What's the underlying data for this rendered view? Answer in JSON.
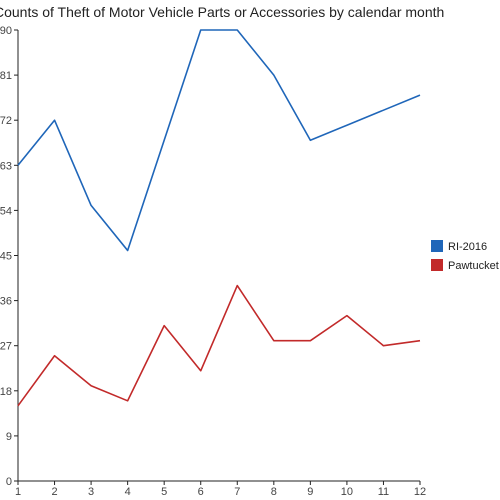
{
  "chart_data": {
    "type": "line",
    "title": "Counts of Theft of Motor Vehicle Parts or Accessories by calendar month",
    "xlabel": "",
    "ylabel": "",
    "x": [
      1,
      2,
      3,
      4,
      5,
      6,
      7,
      8,
      9,
      10,
      11,
      12
    ],
    "x_tick_labels": [
      "1",
      "2",
      "3",
      "4",
      "5",
      "6",
      "7",
      "8",
      "9",
      "10",
      "11",
      "12"
    ],
    "ylim": [
      0,
      90
    ],
    "y_ticks": [
      0,
      9,
      18,
      27,
      36,
      45,
      54,
      63,
      72,
      81,
      90
    ],
    "y_tick_labels": [
      "0",
      "9",
      "18",
      "27",
      "36",
      "45",
      "54",
      "63",
      "72",
      "81",
      "90"
    ],
    "grid": false,
    "legend_position": "right",
    "series": [
      {
        "name": "RI-2016",
        "color": "#1f66b9",
        "values": [
          63,
          72,
          55,
          46,
          68,
          90,
          90,
          81,
          68,
          71,
          74,
          77
        ]
      },
      {
        "name": "Pawtucket",
        "color": "#c22a2a",
        "values": [
          15,
          25,
          19,
          16,
          31,
          22,
          39,
          28,
          28,
          33,
          27,
          28
        ]
      }
    ]
  }
}
